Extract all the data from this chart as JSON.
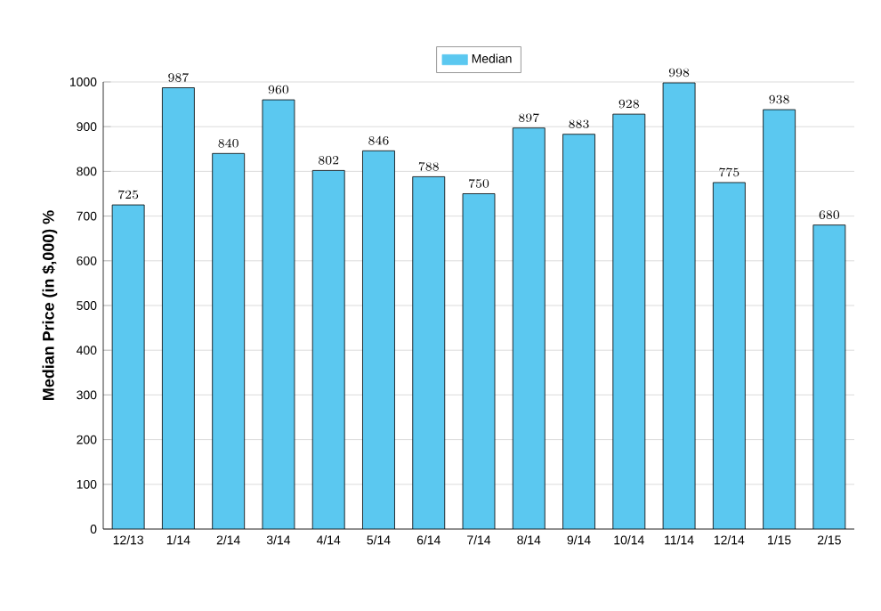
{
  "chart_data": {
    "type": "bar",
    "ylabel": "Median Price (in $,000) %",
    "categories": [
      "12/13",
      "1/14",
      "2/14",
      "3/14",
      "4/14",
      "5/14",
      "6/14",
      "7/14",
      "8/14",
      "9/14",
      "10/14",
      "11/14",
      "12/14",
      "1/15",
      "2/15"
    ],
    "series": [
      {
        "name": "Median",
        "color": "#5bc8f0",
        "values": [
          725,
          987,
          840,
          960,
          802,
          846,
          788,
          750,
          897,
          883,
          928,
          998,
          775,
          938,
          680
        ]
      }
    ],
    "ylim": [
      0,
      1000
    ],
    "yticks": [
      0,
      100,
      200,
      300,
      400,
      500,
      600,
      700,
      800,
      900,
      1000
    ],
    "grid": "y",
    "legend": "top",
    "data_labels": true
  }
}
